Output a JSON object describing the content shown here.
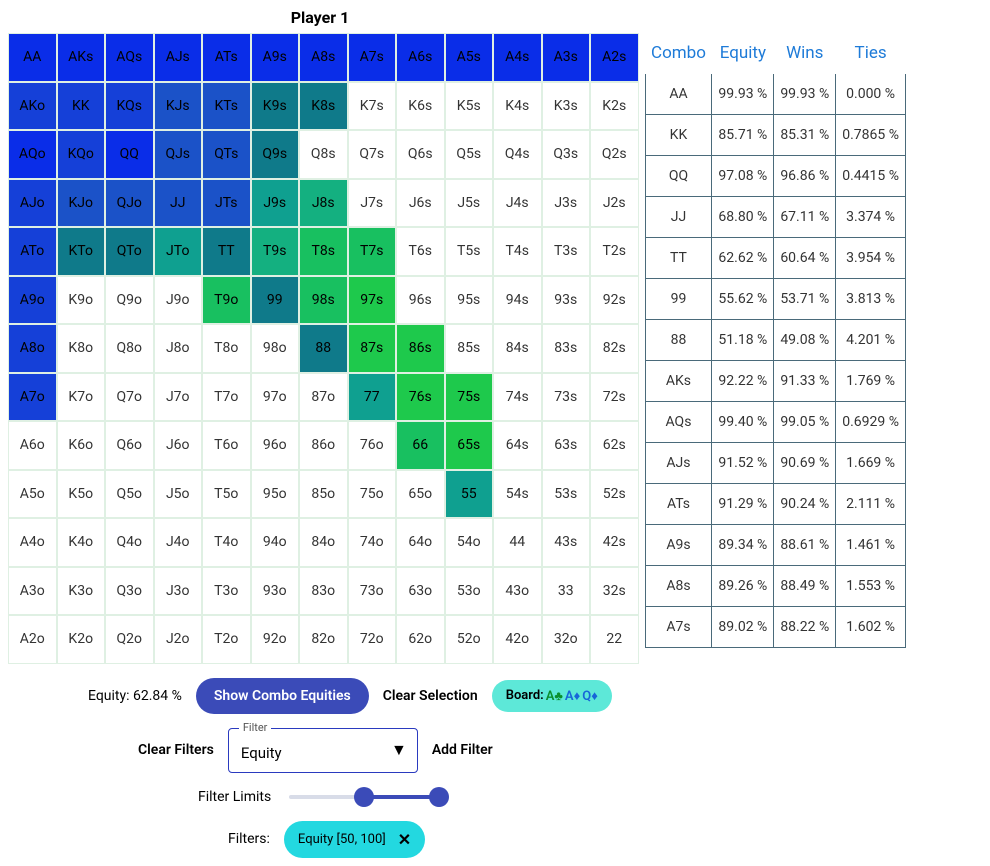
{
  "title": "Player 1",
  "ranks": [
    "A",
    "K",
    "Q",
    "J",
    "T",
    "9",
    "8",
    "7",
    "6",
    "5",
    "4",
    "3",
    "2"
  ],
  "colors": {
    "blue1": "#0a2de8",
    "blue2": "#1540d8",
    "blue3": "#1b52c8",
    "teal1": "#0f7a8a",
    "teal2": "#0fa090",
    "green1": "#14b080",
    "green2": "#18c060",
    "green3": "#1ec94c",
    "none": "#ffffff"
  },
  "cell_color_map": {
    "AA": "blue1",
    "AKs": "blue1",
    "AQs": "blue1",
    "AJs": "blue1",
    "ATs": "blue1",
    "A9s": "blue1",
    "A8s": "blue1",
    "A7s": "blue1",
    "A6s": "blue1",
    "A5s": "blue1",
    "A4s": "blue1",
    "A3s": "blue1",
    "A2s": "blue1",
    "AKo": "blue2",
    "KK": "blue2",
    "KQs": "blue2",
    "KJs": "blue3",
    "KTs": "blue3",
    "K9s": "teal1",
    "K8s": "teal1",
    "AQo": "blue1",
    "KQo": "blue2",
    "QQ": "blue1",
    "QJs": "blue3",
    "QTs": "blue3",
    "Q9s": "teal1",
    "AJo": "blue2",
    "KJo": "blue3",
    "QJo": "blue3",
    "JJ": "blue3",
    "JTs": "blue3",
    "J9s": "teal2",
    "J8s": "green1",
    "ATo": "blue2",
    "KTo": "teal1",
    "QTo": "teal1",
    "JTo": "teal2",
    "TT": "teal1",
    "T9s": "green1",
    "T8s": "green2",
    "T7s": "green2",
    "A9o": "blue2",
    "T9o": "green2",
    "99": "teal1",
    "98s": "green2",
    "97s": "green3",
    "A8o": "blue2",
    "88": "teal1",
    "87s": "green3",
    "86s": "green3",
    "A7o": "blue2",
    "77": "teal2",
    "76s": "green3",
    "75s": "green3",
    "66": "green2",
    "65s": "green3",
    "55": "teal2"
  },
  "equity_label": "Equity: 62.84 %",
  "show_combo_btn": "Show Combo Equities",
  "clear_selection": "Clear Selection",
  "board_label": "Board: ",
  "board_cards": [
    {
      "r": "A",
      "s": "♣",
      "cls": "suit-c"
    },
    {
      "r": "A",
      "s": "♦",
      "cls": "suit-d"
    },
    {
      "r": "Q",
      "s": "♦",
      "cls": "suit-d"
    }
  ],
  "clear_filters": "Clear Filters",
  "filter_select_label": "Filter",
  "filter_select_value": "Equity",
  "add_filter": "Add Filter",
  "filter_limits": "Filter Limits",
  "slider": {
    "min": 0,
    "max": 100,
    "low": 50,
    "high": 100
  },
  "filters_label": "Filters:",
  "filter_chip": "Equity [50, 100]",
  "eq_headers": [
    "Combo",
    "Equity",
    "Wins",
    "Ties"
  ],
  "eq_rows": [
    [
      "AA",
      "99.93 %",
      "99.93 %",
      "0.000 %"
    ],
    [
      "KK",
      "85.71 %",
      "85.31 %",
      "0.7865 %"
    ],
    [
      "QQ",
      "97.08 %",
      "96.86 %",
      "0.4415 %"
    ],
    [
      "JJ",
      "68.80 %",
      "67.11 %",
      "3.374 %"
    ],
    [
      "TT",
      "62.62 %",
      "60.64 %",
      "3.954 %"
    ],
    [
      "99",
      "55.62 %",
      "53.71 %",
      "3.813 %"
    ],
    [
      "88",
      "51.18 %",
      "49.08 %",
      "4.201 %"
    ],
    [
      "AKs",
      "92.22 %",
      "91.33 %",
      "1.769 %"
    ],
    [
      "AQs",
      "99.40 %",
      "99.05 %",
      "0.6929 %"
    ],
    [
      "AJs",
      "91.52 %",
      "90.69 %",
      "1.669 %"
    ],
    [
      "ATs",
      "91.29 %",
      "90.24 %",
      "2.111 %"
    ],
    [
      "A9s",
      "89.34 %",
      "88.61 %",
      "1.461 %"
    ],
    [
      "A8s",
      "89.26 %",
      "88.49 %",
      "1.553 %"
    ],
    [
      "A7s",
      "89.02 %",
      "88.22 %",
      "1.602 %"
    ]
  ]
}
